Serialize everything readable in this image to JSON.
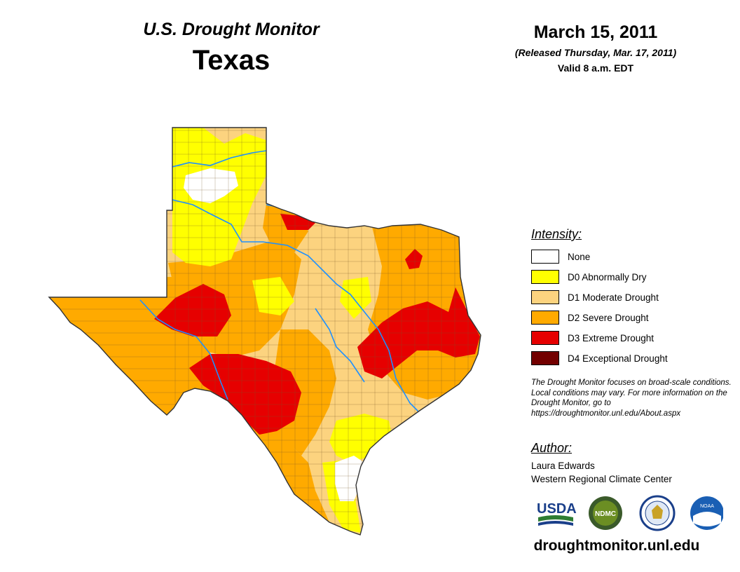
{
  "header": {
    "title": "U.S. Drought Monitor",
    "state": "Texas",
    "date": "March 15, 2011",
    "released": "(Released Thursday, Mar. 17, 2011)",
    "valid": "Valid 8 a.m. EDT"
  },
  "legend": {
    "title": "Intensity:",
    "items": [
      {
        "label": "None",
        "color": "#ffffff"
      },
      {
        "label": "D0 Abnormally Dry",
        "color": "#ffff00"
      },
      {
        "label": "D1 Moderate Drought",
        "color": "#fcd37f"
      },
      {
        "label": "D2 Severe Drought",
        "color": "#ffaa00"
      },
      {
        "label": "D3 Extreme Drought",
        "color": "#e60000"
      },
      {
        "label": "D4 Exceptional Drought",
        "color": "#730000"
      }
    ]
  },
  "note": "The Drought Monitor focuses on broad-scale conditions. Local conditions may vary. For more information on the Drought Monitor, go to https://droughtmonitor.unl.edu/About.aspx",
  "author": {
    "title": "Author:",
    "name": "Laura Edwards",
    "org": "Western Regional Climate Center"
  },
  "logos": {
    "usda": "USDA",
    "ndmc": "NDMC",
    "noaa": "NOAA"
  },
  "website": "droughtmonitor.unl.edu",
  "colors": {
    "none": "#ffffff",
    "d0": "#ffff00",
    "d1": "#fcd37f",
    "d2": "#ffaa00",
    "d3": "#e60000",
    "d4": "#730000",
    "river": "#1e90ff"
  }
}
